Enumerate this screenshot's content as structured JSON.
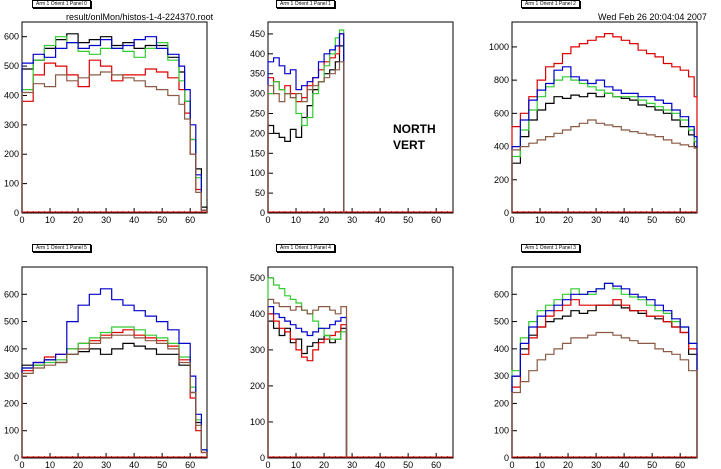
{
  "header": {
    "file_path": "result/onlMon/histos-1-4-224370.root",
    "datetime": "Wed Feb 26 20:04:04 2007"
  },
  "annotation": {
    "line1": "NORTH",
    "line2": "VERT"
  },
  "colors": {
    "black": "#000000",
    "red": "#dd0000",
    "green": "#33cc33",
    "blue": "#0000cc",
    "brown": "#8b5a44"
  },
  "chart_data": [
    {
      "type": "line",
      "title": "Arm 1 Orient 1 Panel 0",
      "xlim": [
        0,
        66
      ],
      "ylim": [
        0,
        650
      ],
      "xticks": [
        0,
        10,
        20,
        30,
        40,
        50,
        60
      ],
      "yticks": [
        0,
        100,
        200,
        300,
        400,
        500,
        600
      ],
      "x": [
        0,
        4,
        8,
        12,
        16,
        20,
        24,
        28,
        32,
        36,
        40,
        44,
        48,
        52,
        56,
        58,
        60,
        62,
        64
      ],
      "series": [
        {
          "color": "black",
          "values": [
            490,
            520,
            560,
            590,
            610,
            580,
            590,
            600,
            570,
            580,
            560,
            570,
            570,
            530,
            480,
            380,
            250,
            150,
            20
          ]
        },
        {
          "color": "red",
          "values": [
            380,
            470,
            510,
            500,
            470,
            430,
            520,
            500,
            450,
            470,
            470,
            490,
            480,
            460,
            420,
            340,
            200,
            80,
            10
          ]
        },
        {
          "color": "green",
          "values": [
            420,
            520,
            570,
            600,
            580,
            550,
            540,
            560,
            560,
            550,
            530,
            560,
            580,
            520,
            450,
            380,
            250,
            120,
            10
          ]
        },
        {
          "color": "blue",
          "values": [
            510,
            540,
            530,
            560,
            580,
            560,
            570,
            590,
            560,
            570,
            590,
            600,
            560,
            540,
            500,
            420,
            300,
            130,
            10
          ]
        },
        {
          "color": "brown",
          "values": [
            410,
            440,
            430,
            470,
            450,
            460,
            470,
            480,
            470,
            460,
            450,
            430,
            420,
            400,
            370,
            320,
            200,
            70,
            10
          ]
        }
      ]
    },
    {
      "type": "line",
      "title": "Arm 1 Orient 1 Panel 1",
      "xlim": [
        0,
        66
      ],
      "ylim": [
        0,
        480
      ],
      "xticks": [
        0,
        10,
        20,
        30,
        40,
        50,
        60
      ],
      "yticks": [
        0,
        50,
        100,
        150,
        200,
        250,
        300,
        350,
        400,
        450
      ],
      "x": [
        0,
        2,
        4,
        6,
        8,
        10,
        12,
        14,
        16,
        18,
        20,
        22,
        24,
        25.5
      ],
      "series": [
        {
          "color": "black",
          "values": [
            220,
            200,
            190,
            180,
            210,
            190,
            240,
            270,
            310,
            330,
            350,
            360,
            380,
            420
          ]
        },
        {
          "color": "red",
          "values": [
            340,
            330,
            310,
            320,
            300,
            280,
            290,
            320,
            340,
            360,
            380,
            390,
            400,
            450
          ]
        },
        {
          "color": "green",
          "values": [
            300,
            330,
            310,
            300,
            290,
            250,
            220,
            240,
            300,
            330,
            370,
            400,
            440,
            460
          ]
        },
        {
          "color": "blue",
          "values": [
            380,
            390,
            370,
            350,
            360,
            310,
            320,
            330,
            340,
            380,
            400,
            410,
            420,
            450
          ]
        },
        {
          "color": "brown",
          "values": [
            320,
            300,
            280,
            300,
            290,
            300,
            280,
            310,
            320,
            330,
            340,
            350,
            360,
            380
          ]
        }
      ]
    },
    {
      "type": "line",
      "title": "Arm 1 Orient 1 Panel 2",
      "xlim": [
        0,
        66
      ],
      "ylim": [
        0,
        1150
      ],
      "xticks": [
        0,
        10,
        20,
        30,
        40,
        50,
        60
      ],
      "yticks": [
        0,
        200,
        400,
        600,
        800,
        1000
      ],
      "x": [
        0,
        3,
        6,
        9,
        12,
        15,
        18,
        21,
        24,
        27,
        30,
        33,
        36,
        39,
        42,
        45,
        48,
        51,
        54,
        57,
        60,
        63,
        65
      ],
      "series": [
        {
          "color": "black",
          "values": [
            300,
            460,
            560,
            620,
            660,
            700,
            690,
            710,
            700,
            720,
            700,
            720,
            700,
            690,
            680,
            650,
            640,
            620,
            600,
            560,
            520,
            470,
            400
          ]
        },
        {
          "color": "red",
          "values": [
            520,
            600,
            700,
            800,
            880,
            900,
            960,
            1000,
            1020,
            1040,
            1060,
            1080,
            1060,
            1040,
            1020,
            980,
            960,
            940,
            900,
            880,
            860,
            820,
            700
          ]
        },
        {
          "color": "green",
          "values": [
            340,
            500,
            620,
            700,
            760,
            800,
            820,
            800,
            780,
            760,
            740,
            720,
            700,
            700,
            700,
            680,
            660,
            640,
            620,
            600,
            560,
            500,
            430
          ]
        },
        {
          "color": "blue",
          "values": [
            400,
            560,
            680,
            740,
            780,
            860,
            880,
            820,
            800,
            780,
            800,
            760,
            740,
            720,
            720,
            700,
            700,
            680,
            660,
            620,
            580,
            520,
            460
          ]
        },
        {
          "color": "brown",
          "values": [
            380,
            400,
            420,
            440,
            460,
            480,
            500,
            520,
            540,
            560,
            540,
            530,
            520,
            500,
            490,
            480,
            470,
            460,
            440,
            420,
            410,
            400,
            390
          ]
        }
      ]
    },
    {
      "type": "line",
      "title": "Arm 1 Orient 1 Panel 5",
      "xlim": [
        0,
        66
      ],
      "ylim": [
        0,
        700
      ],
      "xticks": [
        0,
        10,
        20,
        30,
        40,
        50,
        60
      ],
      "yticks": [
        0,
        100,
        200,
        300,
        400,
        500,
        600
      ],
      "x": [
        0,
        4,
        8,
        12,
        16,
        20,
        24,
        28,
        32,
        36,
        40,
        44,
        48,
        52,
        56,
        60,
        62,
        64
      ],
      "series": [
        {
          "color": "black",
          "values": [
            340,
            340,
            360,
            350,
            380,
            390,
            400,
            380,
            400,
            420,
            410,
            400,
            380,
            380,
            340,
            240,
            130,
            30
          ]
        },
        {
          "color": "red",
          "values": [
            320,
            350,
            370,
            380,
            400,
            420,
            430,
            450,
            460,
            470,
            450,
            440,
            430,
            410,
            360,
            220,
            100,
            20
          ]
        },
        {
          "color": "green",
          "values": [
            330,
            340,
            350,
            360,
            400,
            420,
            440,
            460,
            480,
            480,
            470,
            450,
            440,
            420,
            370,
            260,
            140,
            30
          ]
        },
        {
          "color": "blue",
          "values": [
            330,
            350,
            360,
            380,
            500,
            560,
            600,
            620,
            580,
            560,
            540,
            520,
            500,
            470,
            420,
            300,
            160,
            30
          ]
        },
        {
          "color": "brown",
          "values": [
            310,
            330,
            340,
            350,
            380,
            400,
            420,
            440,
            450,
            450,
            440,
            430,
            420,
            400,
            350,
            240,
            120,
            20
          ]
        }
      ]
    },
    {
      "type": "line",
      "title": "Arm 1 Orient 1 Panel 4",
      "xlim": [
        0,
        66
      ],
      "ylim": [
        0,
        530
      ],
      "xticks": [
        0,
        10,
        20,
        30,
        40,
        50,
        60
      ],
      "yticks": [
        0,
        100,
        200,
        300,
        400,
        500
      ],
      "x": [
        0,
        2,
        4,
        6,
        8,
        10,
        12,
        14,
        16,
        18,
        20,
        22,
        24,
        26
      ],
      "series": [
        {
          "color": "black",
          "values": [
            380,
            360,
            340,
            360,
            320,
            330,
            290,
            310,
            320,
            330,
            340,
            320,
            330,
            360
          ]
        },
        {
          "color": "red",
          "values": [
            400,
            380,
            360,
            350,
            330,
            300,
            280,
            270,
            300,
            320,
            330,
            340,
            350,
            370
          ]
        },
        {
          "color": "green",
          "values": [
            500,
            480,
            470,
            450,
            440,
            430,
            410,
            400,
            380,
            360,
            340,
            330,
            330,
            350
          ]
        },
        {
          "color": "blue",
          "values": [
            420,
            400,
            390,
            380,
            370,
            360,
            350,
            340,
            350,
            360,
            360,
            370,
            380,
            390
          ]
        },
        {
          "color": "brown",
          "values": [
            440,
            430,
            420,
            420,
            410,
            420,
            410,
            400,
            410,
            420,
            420,
            410,
            400,
            420
          ]
        }
      ]
    },
    {
      "type": "line",
      "title": "Arm 1 Orient 1 Panel 3",
      "xlim": [
        0,
        66
      ],
      "ylim": [
        0,
        700
      ],
      "xticks": [
        0,
        10,
        20,
        30,
        40,
        50,
        60
      ],
      "yticks": [
        0,
        100,
        200,
        300,
        400,
        500,
        600
      ],
      "x": [
        0,
        3,
        6,
        9,
        12,
        15,
        18,
        21,
        24,
        27,
        30,
        33,
        36,
        39,
        42,
        45,
        48,
        51,
        54,
        57,
        60,
        63
      ],
      "series": [
        {
          "color": "black",
          "values": [
            300,
            400,
            450,
            480,
            500,
            510,
            520,
            540,
            530,
            540,
            560,
            560,
            560,
            550,
            540,
            530,
            520,
            510,
            500,
            480,
            460,
            380
          ]
        },
        {
          "color": "red",
          "values": [
            260,
            380,
            440,
            480,
            520,
            540,
            560,
            580,
            560,
            560,
            560,
            560,
            580,
            560,
            540,
            540,
            520,
            520,
            500,
            480,
            460,
            400
          ]
        },
        {
          "color": "green",
          "values": [
            320,
            440,
            500,
            540,
            560,
            580,
            600,
            620,
            600,
            600,
            620,
            640,
            620,
            600,
            590,
            580,
            560,
            540,
            530,
            500,
            480,
            420
          ]
        },
        {
          "color": "blue",
          "values": [
            300,
            420,
            480,
            520,
            540,
            560,
            580,
            600,
            600,
            610,
            620,
            640,
            630,
            620,
            600,
            590,
            580,
            560,
            540,
            510,
            480,
            420
          ]
        },
        {
          "color": "brown",
          "values": [
            240,
            280,
            320,
            360,
            380,
            400,
            420,
            440,
            440,
            450,
            460,
            460,
            450,
            440,
            430,
            420,
            420,
            400,
            390,
            380,
            360,
            320
          ]
        }
      ]
    }
  ]
}
